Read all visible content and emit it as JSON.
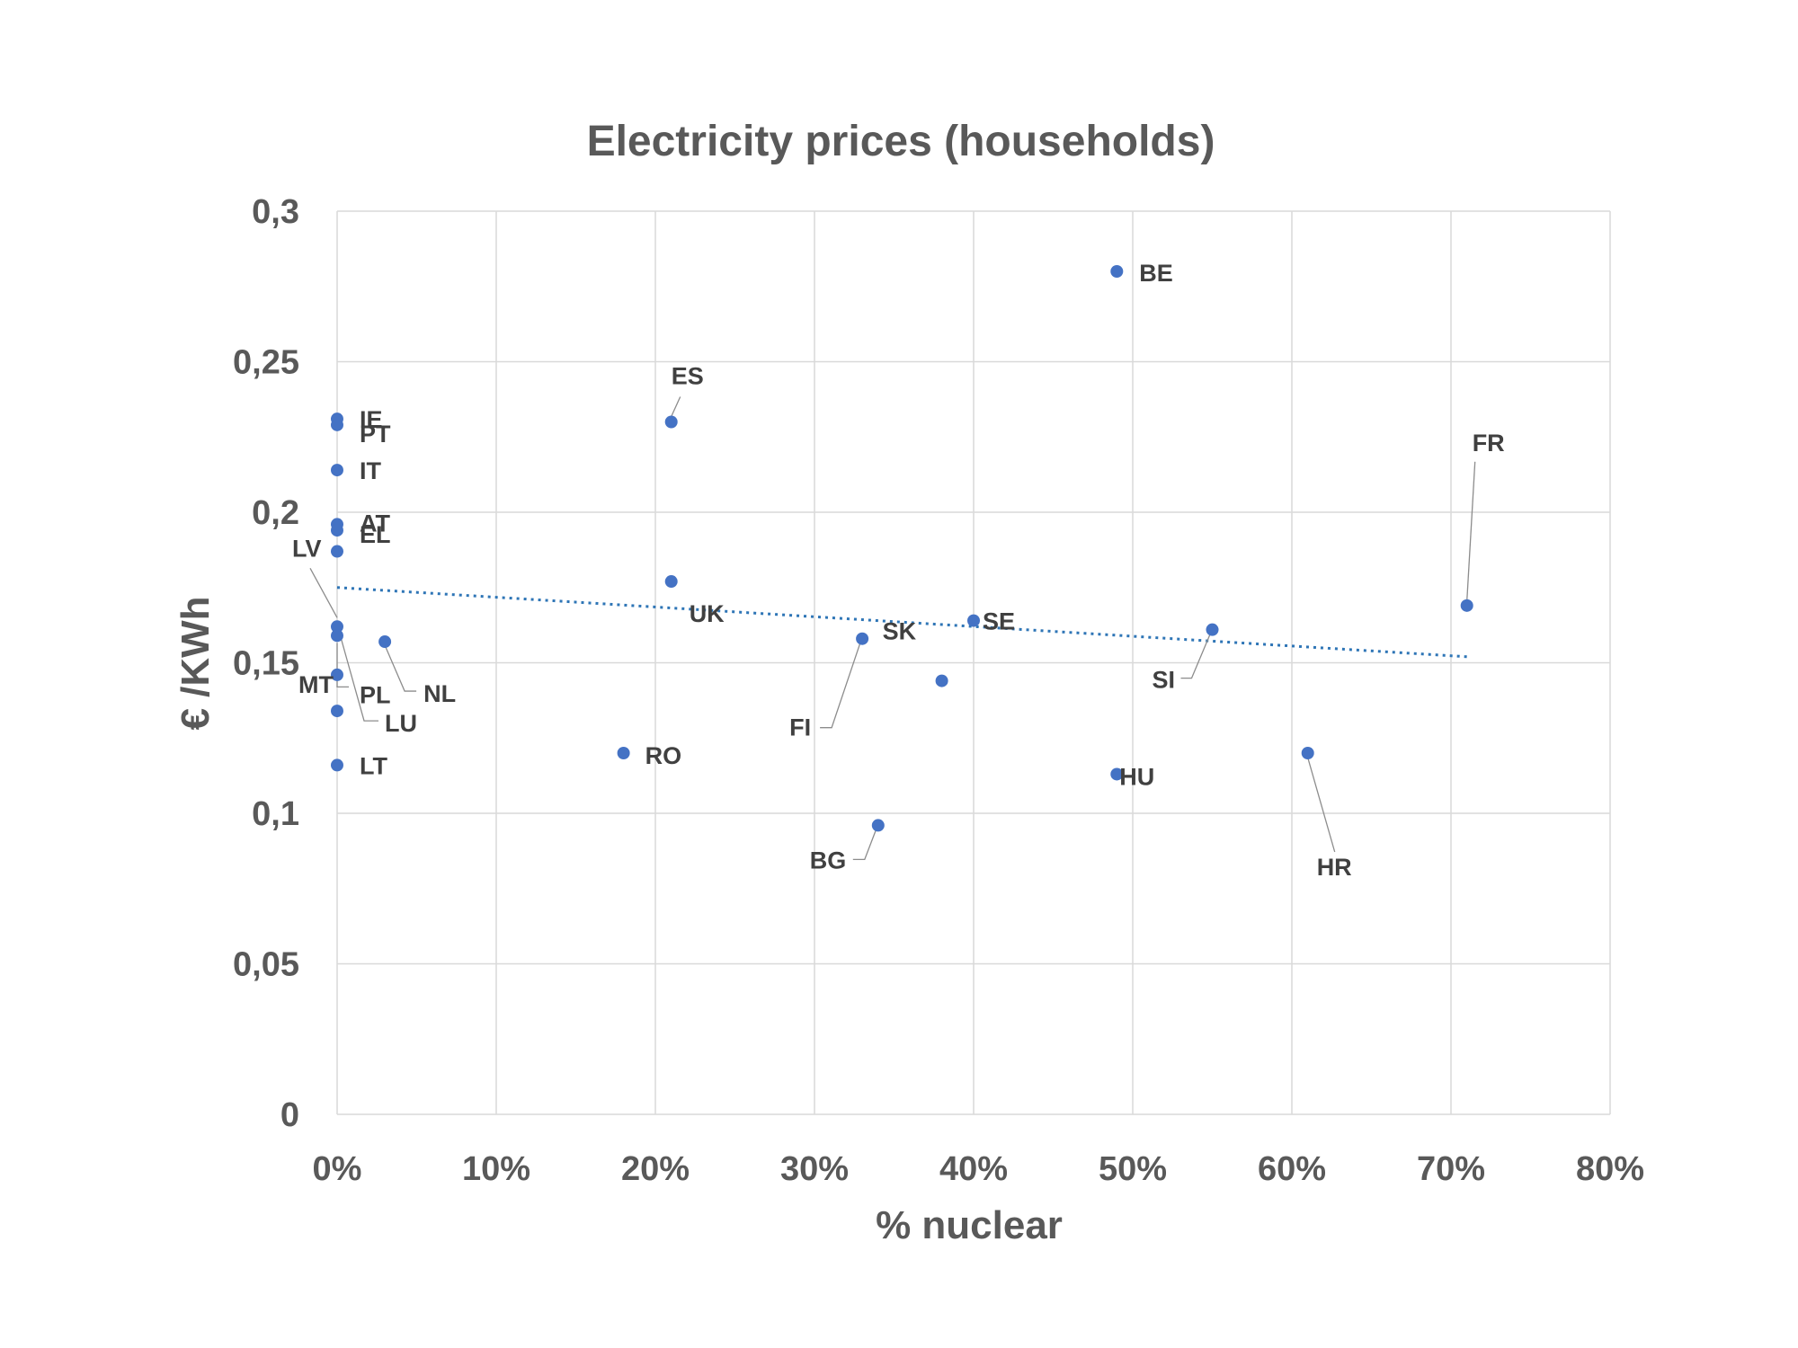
{
  "chart_data": {
    "type": "scatter",
    "title": "Electricity prices (households)",
    "xlabel": "% nuclear",
    "ylabel": "€ /KWh",
    "xlim": [
      0,
      0.8
    ],
    "ylim": [
      0,
      0.3
    ],
    "x_ticks": [
      "0%",
      "10%",
      "20%",
      "30%",
      "40%",
      "50%",
      "60%",
      "70%",
      "80%"
    ],
    "y_ticks": [
      "0",
      "0,05",
      "0,1",
      "0,15",
      "0,2",
      "0,25",
      "0,3"
    ],
    "grid": true,
    "marker_color": "#4472c4",
    "trendline": {
      "type": "linear",
      "style": "dotted",
      "color": "#2e75b6",
      "x": [
        0,
        0.71
      ],
      "y": [
        0.175,
        0.152
      ]
    },
    "points": [
      {
        "label": "IE",
        "x": 0.0,
        "y": 0.231
      },
      {
        "label": "PT",
        "x": 0.0,
        "y": 0.229
      },
      {
        "label": "IT",
        "x": 0.0,
        "y": 0.214
      },
      {
        "label": "AT",
        "x": 0.0,
        "y": 0.196
      },
      {
        "label": "EL",
        "x": 0.0,
        "y": 0.194
      },
      {
        "label": "LV",
        "x": 0.0,
        "y": 0.162
      },
      {
        "label": "MT",
        "x": 0.0,
        "y": 0.146
      },
      {
        "label": "PL",
        "x": 0.0,
        "y": 0.159
      },
      {
        "label": "LU",
        "x": 0.0,
        "y": 0.134
      },
      {
        "label": "LT",
        "x": 0.0,
        "y": 0.116
      },
      {
        "label": "NL",
        "x": 0.03,
        "y": 0.157
      },
      {
        "label": "RO",
        "x": 0.18,
        "y": 0.12
      },
      {
        "label": "ES",
        "x": 0.21,
        "y": 0.23
      },
      {
        "label": "UK",
        "x": 0.21,
        "y": 0.177
      },
      {
        "label": "FI",
        "x": 0.33,
        "y": 0.158
      },
      {
        "label": "BG",
        "x": 0.34,
        "y": 0.096
      },
      {
        "label": "SK",
        "x": 0.38,
        "y": 0.144
      },
      {
        "label": "SE",
        "x": 0.4,
        "y": 0.164
      },
      {
        "label": "BE",
        "x": 0.49,
        "y": 0.28
      },
      {
        "label": "HU",
        "x": 0.49,
        "y": 0.113
      },
      {
        "label": "SI",
        "x": 0.55,
        "y": 0.161
      },
      {
        "label": "HR",
        "x": 0.61,
        "y": 0.12
      },
      {
        "label": "FR",
        "x": 0.71,
        "y": 0.169
      },
      {
        "label": "",
        "x": 0.0,
        "y": 0.187
      }
    ]
  }
}
